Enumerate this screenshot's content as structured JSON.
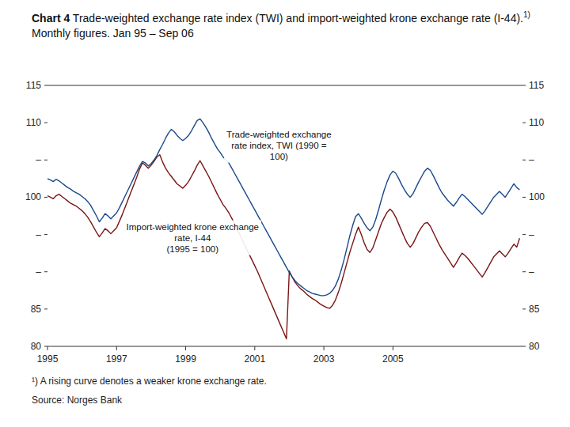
{
  "chart_data": {
    "type": "line",
    "title": "Chart 4",
    "subtitle": [
      " Trade-weighted exchange rate index (TWI) and import-weighted krone exchange rate (I-44).",
      "1)",
      " Monthly figures. Jan 95 –",
      "Sep 06"
    ],
    "footnote": "¹) A rising curve denotes a weaker krone exchange rate.",
    "source": "Source: Norges Bank",
    "grid": false,
    "xlim": [
      1995,
      2008.75
    ],
    "xticks": [
      1995,
      1997,
      1999,
      2001,
      2003,
      2005
    ],
    "ylim": [
      80,
      115
    ],
    "yticks": [
      80,
      85,
      {
        "value": 90,
        "label": "–"
      },
      {
        "value": 95,
        "label": "–"
      },
      100,
      {
        "value": 105,
        "label": "–"
      },
      110,
      115
    ],
    "y2lim": [
      80,
      115
    ],
    "y2ticks": [
      80,
      85,
      {
        "value": 90,
        "label": "–"
      },
      {
        "value": 95,
        "label": "–"
      },
      100,
      {
        "value": 105,
        "label": "–"
      },
      110,
      115
    ],
    "annotations": [
      {
        "text": [
          "Trade-weighted exchange",
          "rate index, TWI (1990 =",
          "100)"
        ],
        "x": 2001.7,
        "y": 109.2
      },
      {
        "text": [
          "Import-weighted krone exchange",
          "rate, I-44",
          "(1995 = 100)"
        ],
        "x": 1999.2,
        "y": 96.8
      }
    ],
    "x": [
      1995,
      1995.0833333333333,
      1995.1666666666667,
      1995.25,
      1995.3333333333333,
      1995.4166666666667,
      1995.5,
      1995.5833333333333,
      1995.6666666666667,
      1995.75,
      1995.8333333333333,
      1995.9166666666667,
      1996,
      1996.0833333333333,
      1996.1666666666667,
      1996.25,
      1996.3333333333333,
      1996.4166666666667,
      1996.5,
      1996.5833333333333,
      1996.6666666666667,
      1996.75,
      1996.8333333333333,
      1996.9166666666667,
      1997,
      1997.0833333333333,
      1997.1666666666667,
      1997.25,
      1997.3333333333333,
      1997.4166666666667,
      1997.5,
      1997.5833333333333,
      1997.6666666666667,
      1997.75,
      1997.8333333333333,
      1997.9166666666667,
      1998,
      1998.0833333333333,
      1998.1666666666667,
      1998.25,
      1998.3333333333333,
      1998.4166666666667,
      1998.5,
      1998.5833333333333,
      1998.6666666666667,
      1998.75,
      1998.8333333333333,
      1998.9166666666667,
      1999,
      1999.0833333333333,
      1999.1666666666667,
      1999.25,
      1999.3333333333333,
      1999.4166666666667,
      1999.5,
      1999.5833333333333,
      1999.6666666666667,
      1999.75,
      1999.8333333333333,
      1999.9166666666667,
      2000,
      2000.0833333333333,
      2000.1666666666667,
      2000.25,
      2000.3333333333333,
      2000.4166666666667,
      2000.5,
      2000.5833333333333,
      2000.6666666666667,
      2000.75,
      2000.8333333333333,
      2000.9166666666667,
      2001,
      2001.0833333333333,
      2001.1666666666667,
      2001.25,
      2001.3333333333333,
      2001.4166666666667,
      2001.5,
      2001.5833333333333,
      2001.6666666666667,
      2001.75,
      2001.8333333333333,
      2001.9166666666667,
      2002,
      2002.0833333333333,
      2002.1666666666667,
      2002.25,
      2002.3333333333333,
      2002.4166666666667,
      2002.5,
      2002.5833333333333,
      2002.6666666666667,
      2002.75,
      2002.8333333333333,
      2002.9166666666667,
      2003,
      2003.0833333333333,
      2003.1666666666667,
      2003.25,
      2003.3333333333333,
      2003.4166666666667,
      2003.5,
      2003.5833333333333,
      2003.6666666666667,
      2003.75,
      2003.8333333333333,
      2003.9166666666667,
      2004,
      2004.0833333333333,
      2004.1666666666667,
      2004.25,
      2004.3333333333333,
      2004.4166666666667,
      2004.5,
      2004.5833333333333,
      2004.6666666666667,
      2004.75,
      2004.8333333333333,
      2004.9166666666667,
      2005,
      2005.0833333333333,
      2005.1666666666667,
      2005.25,
      2005.3333333333333,
      2005.4166666666667,
      2005.5,
      2005.5833333333333,
      2005.6666666666667,
      2005.75,
      2005.8333333333333,
      2005.9166666666667,
      2006,
      2006.0833333333333,
      2006.1666666666667,
      2006.25,
      2006.3333333333333,
      2006.4166666666667,
      2006.5,
      2006.5833333333333,
      2006.6666666666667,
      2006.75,
      2006.8333333333333,
      2006.9166666666667,
      2007,
      2007.0833333333333,
      2007.1666666666667,
      2007.25,
      2007.3333333333333,
      2007.4166666666667,
      2007.5,
      2007.5833333333333,
      2007.6666666666667,
      2007.75,
      2007.8333333333333,
      2007.9166666666667,
      2008,
      2008.0833333333333,
      2008.1666666666667,
      2008.25,
      2008.3333333333333,
      2008.4166666666667,
      2008.5,
      2008.5833333333333,
      2008.6666666666667
    ],
    "series": [
      {
        "color": "#1a4a8a",
        "values": [
          102.5,
          102.3,
          102.1,
          102.4,
          102.2,
          101.9,
          101.6,
          101.3,
          101.1,
          100.8,
          100.6,
          100.4,
          100.1,
          99.8,
          99.4,
          98.9,
          98.2,
          97.5,
          96.7,
          97.2,
          97.8,
          97.5,
          97.1,
          97.5,
          97.9,
          98.6,
          99.4,
          100.2,
          101.0,
          101.8,
          102.6,
          103.4,
          104.2,
          104.8,
          104.6,
          104.2,
          104.5,
          105.0,
          105.6,
          106.4,
          107.1,
          107.9,
          108.6,
          109.1,
          108.8,
          108.3,
          107.9,
          107.6,
          107.9,
          108.3,
          108.9,
          109.6,
          110.3,
          110.5,
          110.0,
          109.4,
          108.7,
          107.9,
          107.2,
          106.5,
          106.0,
          105.4,
          105.0,
          104.6,
          103.9,
          103.2,
          102.5,
          101.8,
          101.1,
          100.4,
          99.7,
          99.0,
          98.3,
          97.6,
          96.9,
          96.2,
          95.5,
          94.8,
          94.1,
          93.4,
          92.7,
          92.0,
          91.3,
          90.6,
          89.9,
          89.3,
          88.8,
          88.4,
          88.1,
          87.8,
          87.5,
          87.3,
          87.1,
          87.0,
          86.9,
          86.8,
          86.8,
          86.9,
          87.1,
          87.5,
          88.1,
          89.0,
          90.2,
          91.6,
          93.2,
          94.8,
          96.2,
          97.4,
          97.8,
          97.2,
          96.5,
          95.9,
          95.5,
          96.0,
          97.0,
          98.3,
          99.7,
          101.0,
          102.1,
          103.0,
          103.5,
          103.2,
          102.5,
          101.7,
          101.0,
          100.4,
          100.0,
          100.5,
          101.3,
          102.1,
          102.8,
          103.5,
          103.9,
          103.6,
          102.9,
          102.1,
          101.3,
          100.6,
          100.1,
          99.6,
          99.2,
          98.8,
          99.3,
          99.9,
          100.4,
          100.1,
          99.7,
          99.3,
          98.9,
          98.5,
          98.1,
          97.7,
          98.2,
          98.8,
          99.4,
          100.0,
          100.4,
          100.8,
          100.4,
          100.0,
          100.6,
          101.2,
          101.8,
          101.3,
          101.0
        ]
      },
      {
        "color": "#7a1515",
        "values": [
          100.2,
          100.0,
          99.8,
          100.2,
          100.4,
          100.1,
          99.8,
          99.5,
          99.2,
          99.0,
          98.8,
          98.5,
          98.2,
          97.8,
          97.3,
          96.7,
          96.0,
          95.3,
          94.7,
          95.2,
          95.8,
          95.5,
          95.1,
          95.5,
          95.9,
          96.8,
          97.7,
          98.7,
          99.7,
          100.7,
          101.7,
          102.7,
          103.8,
          104.6,
          104.3,
          103.9,
          104.3,
          104.8,
          105.4,
          105.7,
          104.7,
          103.9,
          103.3,
          102.8,
          102.3,
          101.8,
          101.5,
          101.2,
          101.6,
          102.1,
          102.8,
          103.5,
          104.3,
          104.9,
          104.2,
          103.5,
          102.8,
          102.0,
          101.2,
          100.4,
          99.7,
          99.0,
          98.5,
          97.9,
          97.2,
          96.4,
          95.6,
          94.8,
          94.0,
          93.2,
          92.4,
          91.6,
          90.8,
          90.0,
          89.1,
          88.2,
          87.3,
          86.4,
          85.5,
          84.6,
          83.7,
          82.8,
          81.9,
          81.0,
          90.1,
          89.3,
          88.6,
          88.1,
          87.7,
          87.4,
          87.0,
          86.7,
          86.4,
          86.2,
          85.9,
          85.6,
          85.4,
          85.2,
          85.1,
          85.5,
          86.2,
          87.2,
          88.4,
          89.8,
          91.2,
          92.6,
          93.8,
          95.0,
          96.0,
          95.0,
          93.9,
          93.0,
          92.6,
          93.2,
          94.3,
          95.4,
          96.5,
          97.3,
          98.0,
          98.4,
          98.0,
          97.3,
          96.4,
          95.5,
          94.6,
          93.8,
          93.3,
          93.8,
          94.6,
          95.4,
          96.0,
          96.5,
          96.6,
          96.1,
          95.3,
          94.5,
          93.7,
          93.0,
          92.4,
          91.8,
          91.2,
          90.6,
          91.2,
          91.9,
          92.5,
          92.2,
          91.8,
          91.3,
          90.8,
          90.3,
          89.8,
          89.3,
          89.9,
          90.6,
          91.3,
          92.0,
          92.4,
          92.8,
          92.4,
          92.0,
          92.5,
          93.1,
          93.7,
          93.3,
          94.5
        ]
      }
    ]
  }
}
